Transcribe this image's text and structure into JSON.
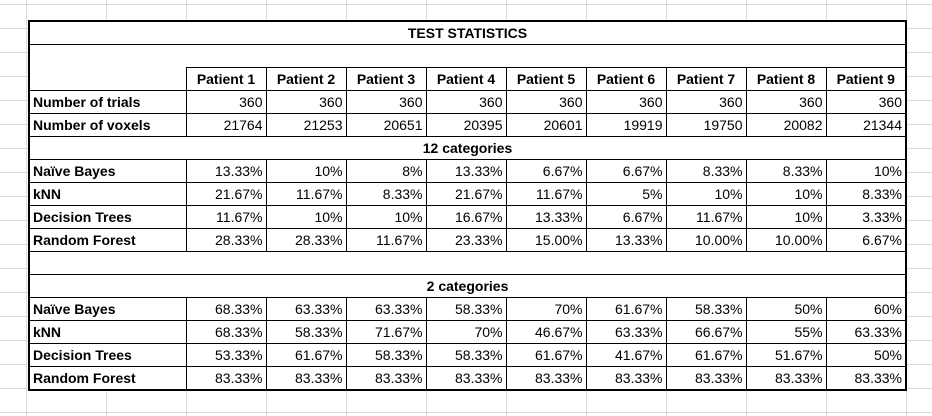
{
  "title": "TEST STATISTICS",
  "columns": [
    "Patient 1",
    "Patient 2",
    "Patient 3",
    "Patient 4",
    "Patient 5",
    "Patient 6",
    "Patient 7",
    "Patient 8",
    "Patient 9"
  ],
  "info_rows": [
    {
      "label": "Number of trials",
      "values": [
        "360",
        "360",
        "360",
        "360",
        "360",
        "360",
        "360",
        "360",
        "360"
      ]
    },
    {
      "label": "Number of voxels",
      "values": [
        "21764",
        "21253",
        "20651",
        "20395",
        "20601",
        "19919",
        "19750",
        "20082",
        "21344"
      ]
    }
  ],
  "sections": [
    {
      "heading": "12 categories",
      "rows": [
        {
          "label": "Naïve Bayes",
          "values": [
            "13.33%",
            "10%",
            "8%",
            "13.33%",
            "6.67%",
            "6.67%",
            "8.33%",
            "8.33%",
            "10%"
          ]
        },
        {
          "label": "kNN",
          "values": [
            "21.67%",
            "11.67%",
            "8.33%",
            "21.67%",
            "11.67%",
            "5%",
            "10%",
            "10%",
            "8.33%"
          ]
        },
        {
          "label": "Decision Trees",
          "values": [
            "11.67%",
            "10%",
            "10%",
            "16.67%",
            "13.33%",
            "6.67%",
            "11.67%",
            "10%",
            "3.33%"
          ]
        },
        {
          "label": "Random Forest",
          "values": [
            "28.33%",
            "28.33%",
            "11.67%",
            "23.33%",
            "15.00%",
            "13.33%",
            "10.00%",
            "10.00%",
            "6.67%"
          ]
        }
      ]
    },
    {
      "heading": "2 categories",
      "rows": [
        {
          "label": "Naïve Bayes",
          "values": [
            "68.33%",
            "63.33%",
            "63.33%",
            "58.33%",
            "70%",
            "61.67%",
            "58.33%",
            "50%",
            "60%"
          ]
        },
        {
          "label": "kNN",
          "values": [
            "68.33%",
            "58.33%",
            "71.67%",
            "70%",
            "46.67%",
            "63.33%",
            "66.67%",
            "55%",
            "63.33%"
          ]
        },
        {
          "label": "Decision Trees",
          "values": [
            "53.33%",
            "61.67%",
            "58.33%",
            "58.33%",
            "61.67%",
            "41.67%",
            "61.67%",
            "51.67%",
            "50%"
          ]
        },
        {
          "label": "Random Forest",
          "values": [
            "83.33%",
            "83.33%",
            "83.33%",
            "83.33%",
            "83.33%",
            "83.33%",
            "83.33%",
            "83.33%",
            "83.33%"
          ]
        }
      ]
    }
  ]
}
